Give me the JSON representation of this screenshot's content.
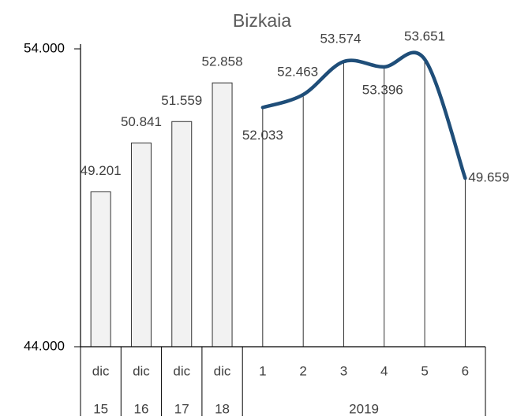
{
  "chart_data": {
    "type": "combo",
    "title": "Bizkaia",
    "categories": [
      "dic",
      "dic",
      "dic",
      "dic",
      "1",
      "2",
      "3",
      "4",
      "5",
      "6"
    ],
    "category_groups": [
      {
        "label": "15",
        "size": 1
      },
      {
        "label": "16",
        "size": 1
      },
      {
        "label": "17",
        "size": 1
      },
      {
        "label": "18",
        "size": 1
      },
      {
        "label": "2019",
        "size": 6
      }
    ],
    "series": [
      {
        "type": "bar",
        "color": "#f2f2f2",
        "values": [
          49201,
          50841,
          51559,
          52858,
          null,
          null,
          null,
          null,
          null,
          null
        ],
        "value_labels": [
          "49.201",
          "50.841",
          "51.559",
          "52.858",
          null,
          null,
          null,
          null,
          null,
          null
        ]
      },
      {
        "type": "line",
        "color": "#1f4e79",
        "values": [
          null,
          null,
          null,
          null,
          52033,
          52463,
          53574,
          53396,
          53651,
          49659
        ],
        "value_labels": [
          null,
          null,
          null,
          null,
          "52.033",
          "52.463",
          "53.574",
          "53.396",
          "53.651",
          "49.659"
        ]
      }
    ],
    "ylim": [
      44000,
      54000
    ],
    "yticks": [
      {
        "value": 44000,
        "label": "44.000"
      },
      {
        "value": 54000,
        "label": "54.000"
      }
    ]
  }
}
